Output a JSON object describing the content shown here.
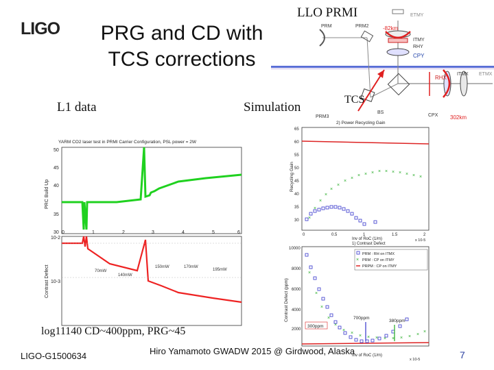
{
  "header": {
    "logo": "LIGO",
    "title_line1": "PRG and CD with",
    "title_line2": "TCS corrections"
  },
  "labels": {
    "l1_data": "L1 data",
    "simulation": "Simulation",
    "llo_prmi": "LLO PRMI",
    "tcs": "TCS",
    "log_note": "log11140 CD~400ppm, PRG~45"
  },
  "footer": {
    "doc_id": "LIGO-G1500634",
    "author_event": "Hiro Yamamoto GWADW 2015 @ Girdwood, Alaska",
    "page": "7"
  },
  "diagram": {
    "etmy": "ETMY",
    "prm": "PRM",
    "prm2": "PRM2",
    "roc_top": "-82km",
    "itmy": "ITMY",
    "rhy": "RHY",
    "cpy": "CPY",
    "rhx": "RHX",
    "itmx": "ITMX",
    "etmx": "ETMX",
    "prm3": "PRM3",
    "bs": "BS",
    "cpx": "CPX",
    "roc_right": "302km"
  },
  "l1_plot": {
    "title": "YARM CO2 laser test in PRMI Carrier Configuration, PSL power = 2W",
    "top_ylabel": "PRC Build Up",
    "top_yticks": [
      "50",
      "45",
      "40",
      "35",
      "30"
    ],
    "bottom_ylabel": "Contrast Defect",
    "bottom_yticks": [
      "10-2",
      "10-3"
    ],
    "xticks": [
      "0",
      "1",
      "2",
      "3",
      "4",
      "5",
      "6"
    ],
    "annotations": [
      "70mW",
      "140mW",
      "150mW",
      "170mW",
      "195mW"
    ]
  },
  "sim_plot": {
    "top_title": "2) Power Recycling Gain",
    "top_ylabel": "Recycling Gain",
    "top_yticks": [
      "65",
      "60",
      "55",
      "50",
      "45",
      "40",
      "35",
      "30"
    ],
    "top_xticks": [
      "0",
      "0.5",
      "1",
      "1.5",
      "2"
    ],
    "top_xlabel": "Inv of RoC (1/m)",
    "top_xscale": "x 10-5",
    "bottom_title": "1) Contrast Defect",
    "bottom_ylabel": "Contrast Defect (ppm)",
    "bottom_yticks": [
      "10000",
      "8000",
      "6000",
      "4000",
      "2000"
    ],
    "bottom_xlabel": "Inv of RoC (1/m)",
    "bottom_xscale": "x 10-5",
    "legend": [
      "PRM : RH on ITMX",
      "PRM : CP on ITMY",
      "PRPM : CP on ITMY"
    ],
    "annotations": [
      "300ppm",
      "700ppm",
      "380ppm"
    ],
    "colors": {
      "prm_rh": "#3333cc",
      "prm_cp": "#22aa22",
      "prpm_cp": "#dd2222"
    }
  }
}
